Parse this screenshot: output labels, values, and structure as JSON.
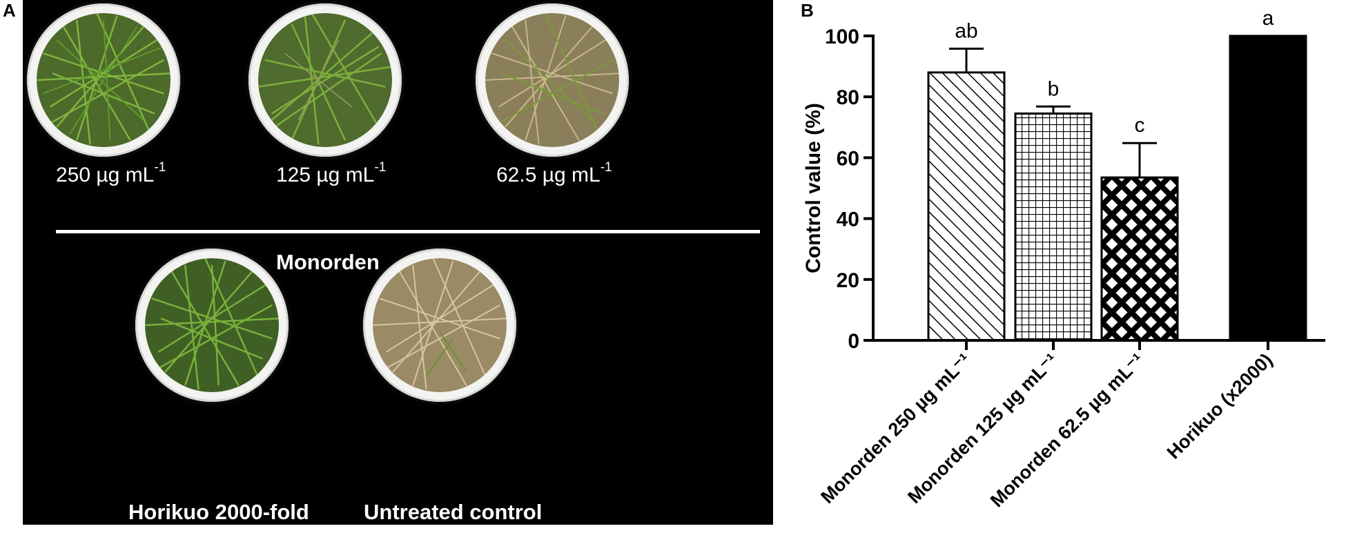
{
  "panel_a": {
    "letter": "A",
    "dose_labels": [
      {
        "text": "250 µg mL",
        "sup": "-1"
      },
      {
        "text": "125 µg mL",
        "sup": "-1"
      },
      {
        "text": "62.5 µg mL",
        "sup": "-1"
      }
    ],
    "group_label": "Monorden",
    "bottom_labels": [
      "Horikuo 2000-fold",
      "Untreated control"
    ]
  },
  "panel_b": {
    "letter": "B"
  },
  "chart_data": {
    "type": "bar",
    "ylabel": "Control value (%)",
    "xlabel": "",
    "ylim": [
      0,
      100
    ],
    "yticks": [
      0,
      20,
      40,
      60,
      80,
      100
    ],
    "categories": [
      "Monorden 250 µg mL⁻¹",
      "Monorden 125 µg mL⁻¹",
      "Monorden 62.5 µg mL⁻¹",
      "Horikuo (x2000)"
    ],
    "values": [
      88,
      74.5,
      53.5,
      100
    ],
    "errors": [
      7.8,
      2.3,
      11.3,
      0
    ],
    "significance": [
      "ab",
      "b",
      "c",
      "a"
    ],
    "patterns": [
      "diagonal-hatch",
      "grid",
      "diamond-lattice",
      "solid"
    ],
    "fill_color": "#000000"
  }
}
